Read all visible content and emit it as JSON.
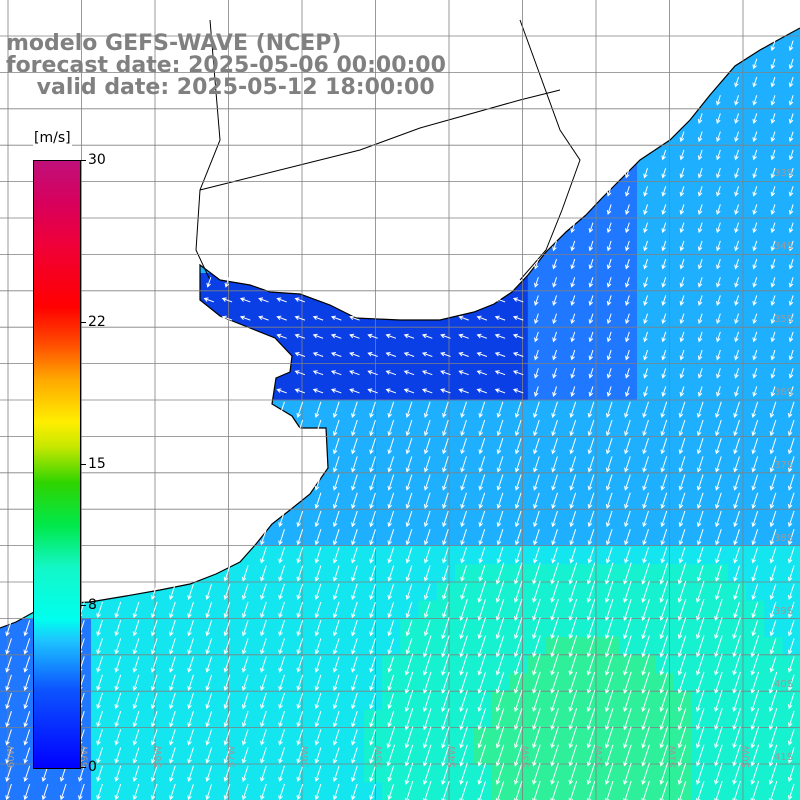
{
  "title": {
    "line1": "modelo GEFS-WAVE (NCEP)",
    "line2": "forecast date: 2025-05-06 00:00:00",
    "line3": "    valid date: 2025-05-12 18:00:00"
  },
  "colorbar": {
    "unit": "[m/s]",
    "ticks": [
      {
        "value": 30,
        "label": "30"
      },
      {
        "value": 22,
        "label": "22"
      },
      {
        "value": 15,
        "label": "15"
      },
      {
        "value": 8,
        "label": "8"
      },
      {
        "value": 0,
        "label": "0"
      }
    ],
    "range": [
      0,
      30
    ]
  },
  "map_grid": {
    "lon_labels": [
      "60W",
      "59W",
      "58W",
      "57W",
      "56W",
      "55W",
      "54W",
      "53W",
      "52W",
      "51W",
      "50W"
    ],
    "lat_labels": [
      "33S",
      "34S",
      "35S",
      "36S",
      "37S",
      "38S",
      "39S",
      "40S",
      "41S"
    ]
  },
  "colors": {
    "dark_blue": "#0b3fe6",
    "blue": "#1f78ff",
    "light_blue": "#1eb0ff",
    "cyan": "#14e6ef",
    "aqua": "#16f2d0",
    "green": "#2ff09a",
    "land": "#ffffff",
    "coastline": "#000000",
    "gridline": "#808080",
    "arrow": "#ffffff"
  }
}
